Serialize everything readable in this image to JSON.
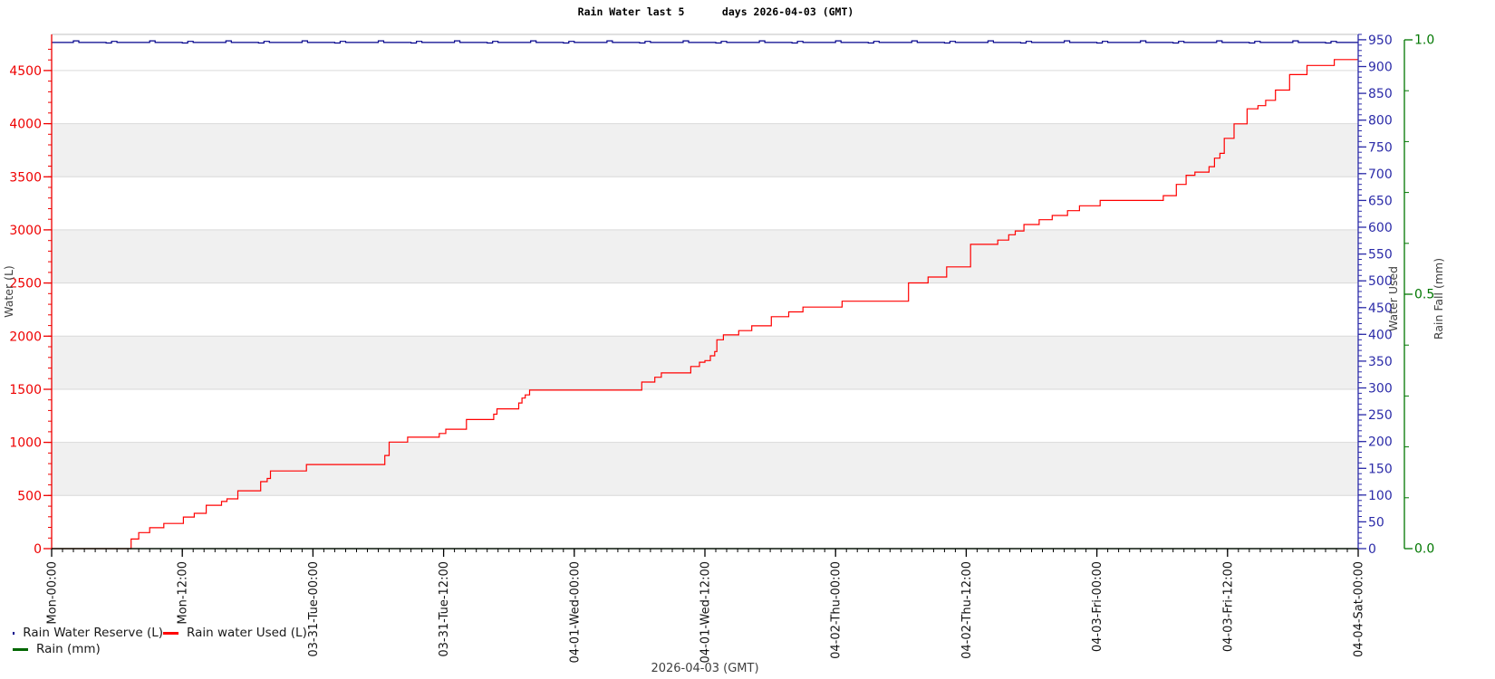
{
  "title": "Rain Water last 5      days 2026-04-03 (GMT)",
  "footer": "2026-04-03 (GMT)",
  "legend": {
    "items": [
      {
        "label": "Rain Water Reserve (L)",
        "color": "#00008b"
      },
      {
        "label": "Rain water Used (L)",
        "color": "#ff0000"
      },
      {
        "label": "Rain (mm)",
        "color": "#006600"
      }
    ]
  },
  "chart_data": {
    "type": "line",
    "title": "Rain Water last 5      days 2026-04-03 (GMT)",
    "footer": "2026-04-03 (GMT)",
    "grid": "alternating-horizontal-bands",
    "legend_position": "bottom-left",
    "x_axis": {
      "unit": "hours from Mon 00:00 GMT",
      "range": [
        0,
        120
      ],
      "major_tick_hours": 12,
      "minor_tick_hours": 1,
      "tick_labels": [
        "Mon-00:00",
        "Mon-12:00",
        "03-31-Tue-00:00",
        "03-31-Tue-12:00",
        "04-01-Wed-00:00",
        "04-01-Wed-12:00",
        "04-02-Thu-00:00",
        "04-02-Thu-12:00",
        "04-03-Fri-00:00",
        "04-03-Fri-12:00",
        "04-04-Sat-00:00"
      ]
    },
    "y_left": {
      "label": "Water (L)",
      "color": "#ee0000",
      "range": [
        0,
        4840
      ],
      "major_ticks": [
        0,
        500,
        1000,
        1500,
        2000,
        2500,
        3000,
        3500,
        4000,
        4500
      ],
      "minor_step": 100
    },
    "y_right": {
      "label": "Water Used",
      "color": "#2b2ba8",
      "range": [
        0,
        960
      ],
      "major_ticks": [
        0,
        50,
        100,
        150,
        200,
        250,
        300,
        350,
        400,
        450,
        500,
        550,
        600,
        650,
        700,
        750,
        800,
        850,
        900,
        950
      ],
      "minor_step": 10
    },
    "y_rain": {
      "label": "Rain Fall (mm)",
      "color": "#007700",
      "range": [
        0,
        1
      ],
      "major_ticks": [
        0,
        0.5,
        1
      ],
      "minor_step": 0.1
    },
    "shaded_bands_left_axis": [
      [
        500,
        1000
      ],
      [
        1500,
        2000
      ],
      [
        2500,
        3000
      ],
      [
        3500,
        4000
      ]
    ],
    "series": [
      {
        "name": "Rain Water Reserve (L)",
        "color": "#00008b",
        "axis": "right_used",
        "style": "step",
        "step_points": [
          [
            0,
            945
          ],
          [
            2,
            948
          ],
          [
            2.5,
            945
          ],
          [
            5,
            944
          ],
          [
            5.5,
            947
          ],
          [
            6,
            945
          ],
          [
            9,
            948
          ],
          [
            9.5,
            945
          ],
          [
            12,
            944
          ],
          [
            12.5,
            947
          ],
          [
            13,
            945
          ],
          [
            16,
            948
          ],
          [
            16.5,
            945
          ],
          [
            19,
            944
          ],
          [
            19.5,
            947
          ],
          [
            20,
            945
          ],
          [
            23,
            948
          ],
          [
            23.5,
            945
          ],
          [
            26,
            944
          ],
          [
            26.5,
            947
          ],
          [
            27,
            945
          ],
          [
            30,
            948
          ],
          [
            30.5,
            945
          ],
          [
            33,
            944
          ],
          [
            33.5,
            947
          ],
          [
            34,
            945
          ],
          [
            37,
            948
          ],
          [
            37.5,
            945
          ],
          [
            40,
            944
          ],
          [
            40.5,
            947
          ],
          [
            41,
            945
          ],
          [
            44,
            948
          ],
          [
            44.5,
            945
          ],
          [
            47,
            944
          ],
          [
            47.5,
            947
          ],
          [
            48,
            945
          ],
          [
            51,
            948
          ],
          [
            51.5,
            945
          ],
          [
            54,
            944
          ],
          [
            54.5,
            947
          ],
          [
            55,
            945
          ],
          [
            58,
            948
          ],
          [
            58.5,
            945
          ],
          [
            61,
            944
          ],
          [
            61.5,
            947
          ],
          [
            62,
            945
          ],
          [
            65,
            948
          ],
          [
            65.5,
            945
          ],
          [
            68,
            944
          ],
          [
            68.5,
            947
          ],
          [
            69,
            945
          ],
          [
            72,
            948
          ],
          [
            72.5,
            945
          ],
          [
            75,
            944
          ],
          [
            75.5,
            947
          ],
          [
            76,
            945
          ],
          [
            79,
            948
          ],
          [
            79.5,
            945
          ],
          [
            82,
            944
          ],
          [
            82.5,
            947
          ],
          [
            83,
            945
          ],
          [
            86,
            948
          ],
          [
            86.5,
            945
          ],
          [
            89,
            944
          ],
          [
            89.5,
            947
          ],
          [
            90,
            945
          ],
          [
            93,
            948
          ],
          [
            93.5,
            945
          ],
          [
            96,
            944
          ],
          [
            96.5,
            947
          ],
          [
            97,
            945
          ],
          [
            100,
            948
          ],
          [
            100.5,
            945
          ],
          [
            103,
            944
          ],
          [
            103.5,
            947
          ],
          [
            104,
            945
          ],
          [
            107,
            948
          ],
          [
            107.5,
            945
          ],
          [
            110,
            944
          ],
          [
            110.5,
            947
          ],
          [
            111,
            945
          ],
          [
            114,
            948
          ],
          [
            114.5,
            945
          ],
          [
            117,
            944
          ],
          [
            117.5,
            947
          ],
          [
            118,
            945
          ],
          [
            120,
            945
          ]
        ]
      },
      {
        "name": "Rain water Used (L)",
        "color": "#ff0000",
        "axis": "right_used",
        "style": "step",
        "step_points": [
          [
            0,
            0
          ],
          [
            7,
            0
          ],
          [
            7.3,
            18
          ],
          [
            8,
            30
          ],
          [
            9,
            39
          ],
          [
            10.3,
            47
          ],
          [
            12.1,
            59
          ],
          [
            13.1,
            66
          ],
          [
            14.2,
            81
          ],
          [
            15.6,
            88
          ],
          [
            16.1,
            93
          ],
          [
            17.1,
            108
          ],
          [
            19.2,
            125
          ],
          [
            19.8,
            131
          ],
          [
            20.1,
            145
          ],
          [
            23.4,
            157
          ],
          [
            30.6,
            174
          ],
          [
            31,
            199
          ],
          [
            32.7,
            208
          ],
          [
            35.6,
            215
          ],
          [
            36.2,
            223
          ],
          [
            38.1,
            241
          ],
          [
            40.6,
            251
          ],
          [
            40.9,
            261
          ],
          [
            42.9,
            272
          ],
          [
            43.2,
            281
          ],
          [
            43.5,
            287
          ],
          [
            43.9,
            296
          ],
          [
            54.2,
            311
          ],
          [
            55.4,
            320
          ],
          [
            56,
            328
          ],
          [
            58.7,
            340
          ],
          [
            59.5,
            348
          ],
          [
            60,
            351
          ],
          [
            60.5,
            360
          ],
          [
            60.9,
            368
          ],
          [
            61.1,
            390
          ],
          [
            61.7,
            399
          ],
          [
            63.1,
            407
          ],
          [
            64.3,
            416
          ],
          [
            66.1,
            433
          ],
          [
            67.7,
            442
          ],
          [
            69,
            451
          ],
          [
            72.6,
            462
          ],
          [
            78.7,
            496
          ],
          [
            80.5,
            507
          ],
          [
            82.2,
            526
          ],
          [
            84.4,
            568
          ],
          [
            86.9,
            576
          ],
          [
            87.9,
            586
          ],
          [
            88.5,
            593
          ],
          [
            89.3,
            605
          ],
          [
            90.7,
            614
          ],
          [
            91.9,
            622
          ],
          [
            93.3,
            631
          ],
          [
            94.4,
            640
          ],
          [
            96.3,
            650
          ],
          [
            102.1,
            659
          ],
          [
            103.3,
            680
          ],
          [
            104.2,
            697
          ],
          [
            105,
            703
          ],
          [
            106.3,
            713
          ],
          [
            106.8,
            729
          ],
          [
            107.3,
            738
          ],
          [
            107.7,
            766
          ],
          [
            108.6,
            793
          ],
          [
            109.8,
            821
          ],
          [
            110.8,
            827
          ],
          [
            111.5,
            837
          ],
          [
            112.4,
            856
          ],
          [
            113.7,
            885
          ],
          [
            115.3,
            902
          ],
          [
            117.8,
            913
          ],
          [
            120,
            913
          ]
        ]
      },
      {
        "name": "Rain (mm)",
        "color": "#006600",
        "axis": "right_rain",
        "style": "step",
        "step_points": [
          [
            0,
            0
          ],
          [
            120,
            0
          ]
        ]
      }
    ]
  }
}
